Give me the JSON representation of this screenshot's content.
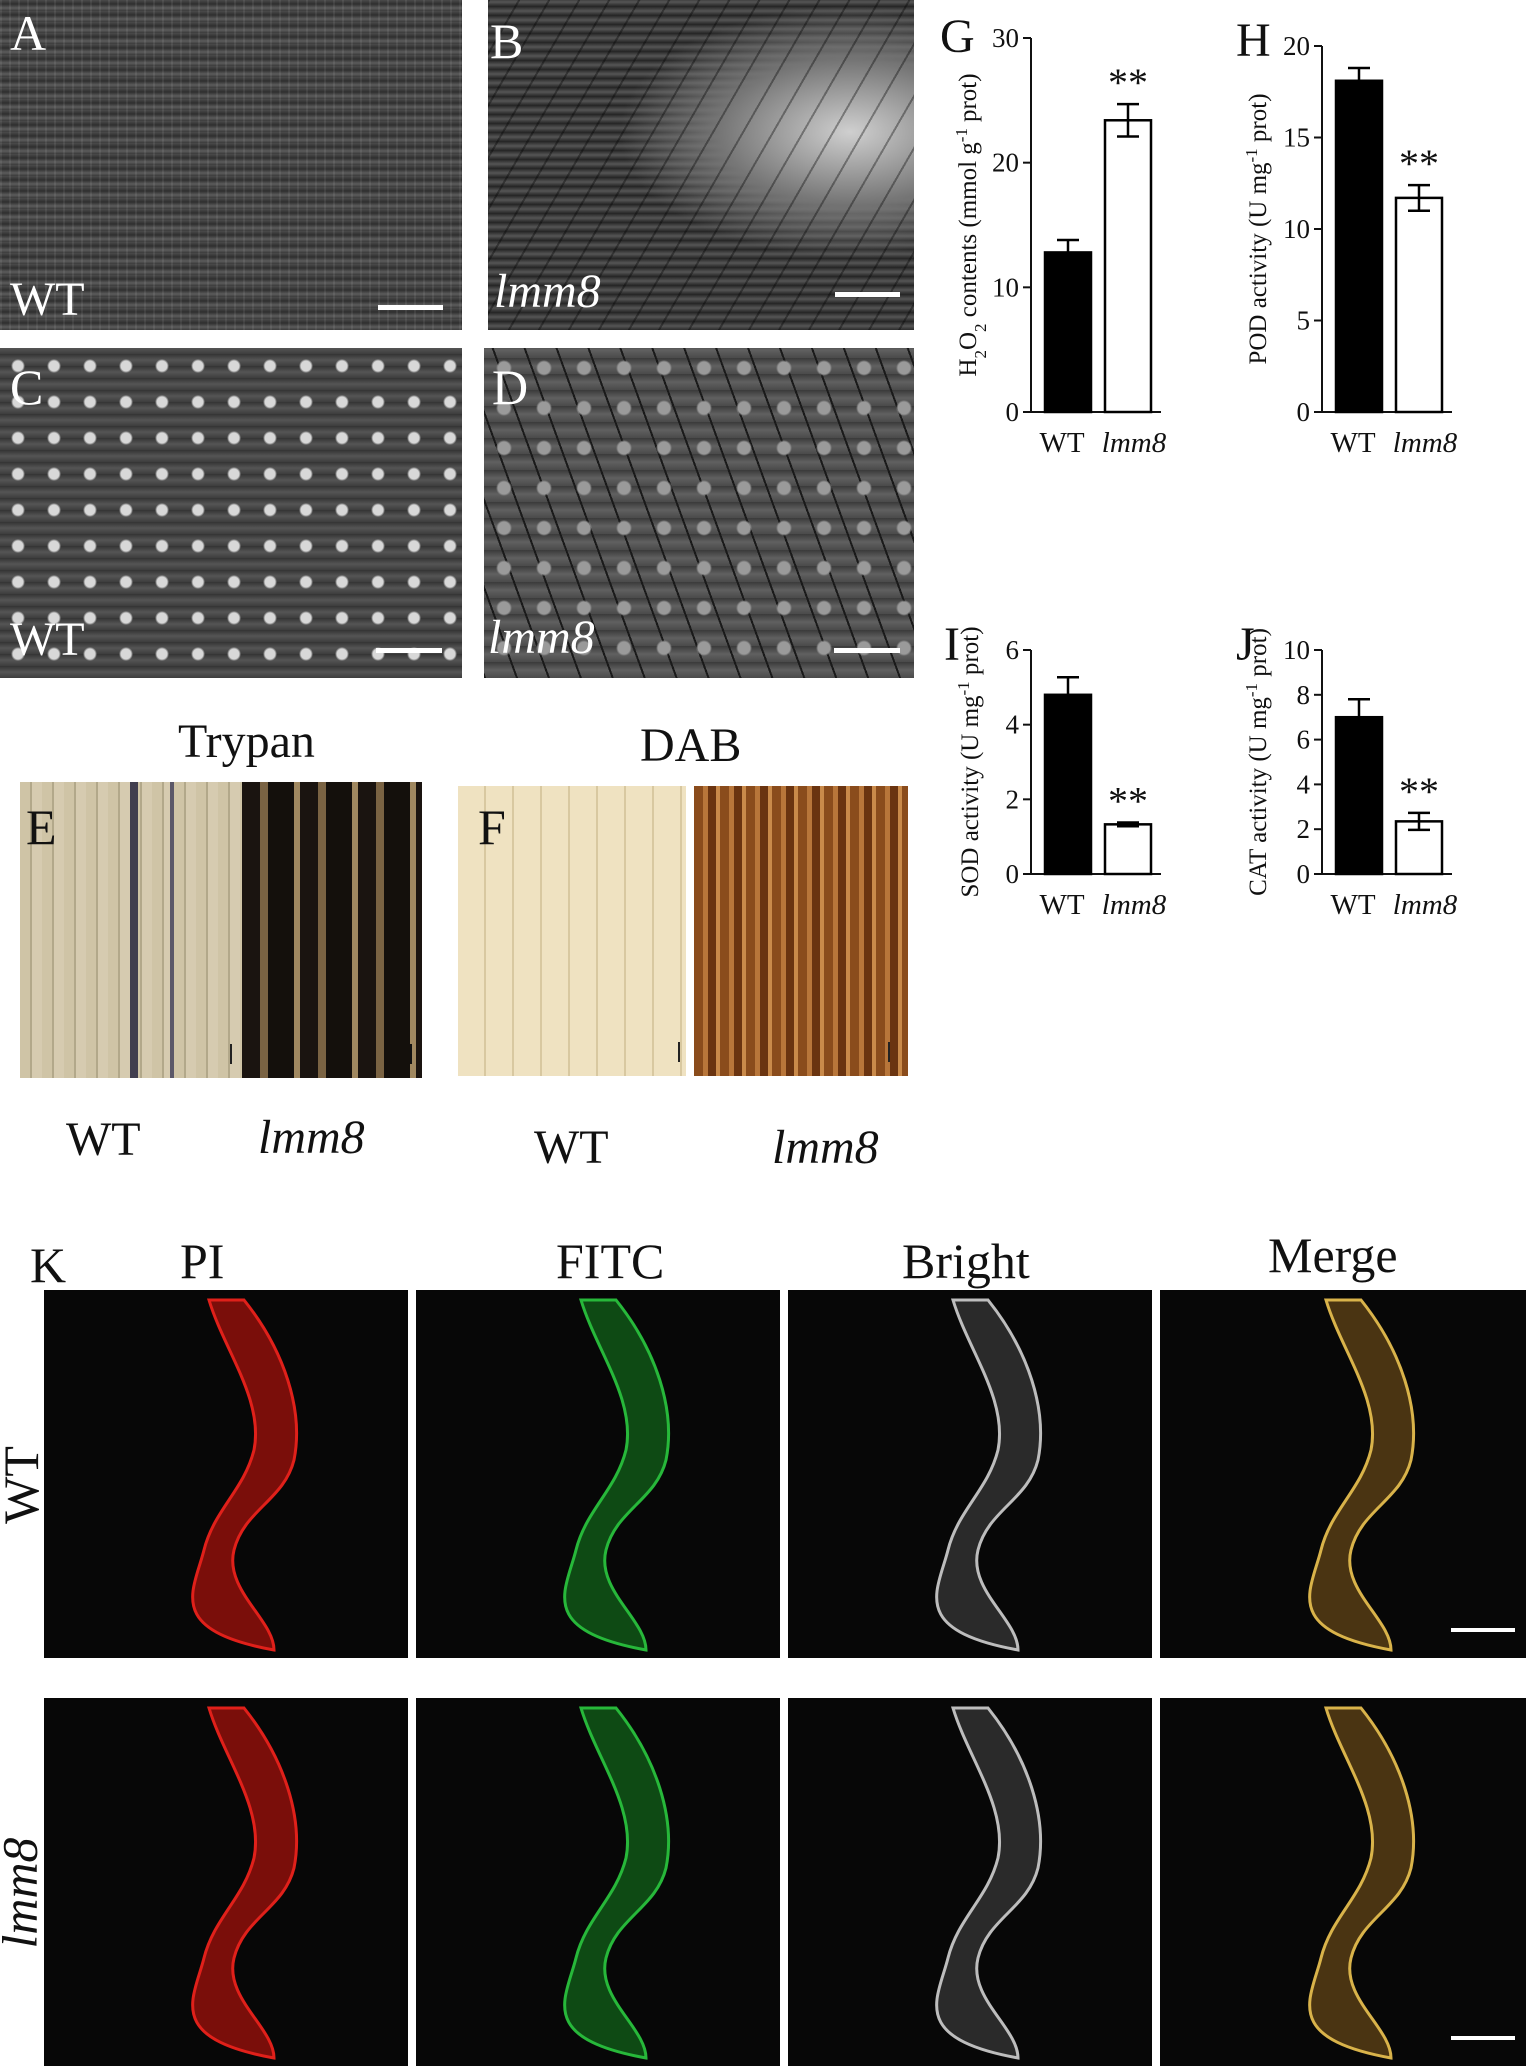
{
  "sem": {
    "A": {
      "letter": "A",
      "genotype": "WT"
    },
    "B": {
      "letter": "B",
      "genotype": "lmm8"
    },
    "C": {
      "letter": "C",
      "genotype": "WT"
    },
    "D": {
      "letter": "D",
      "genotype": "lmm8"
    }
  },
  "stain": {
    "trypan_title": "Trypan",
    "dab_title": "DAB",
    "E_letter": "E",
    "F_letter": "F",
    "E_wt": "WT",
    "E_mut": "lmm8",
    "F_wt": "WT",
    "F_mut": "lmm8"
  },
  "tunel": {
    "letter": "K",
    "columns": [
      "PI",
      "FITC",
      "Bright",
      "Merge"
    ],
    "rows": [
      "WT",
      "lmm8"
    ]
  },
  "chart_data": [
    {
      "panel": "G",
      "type": "bar",
      "categories": [
        "WT",
        "lmm8"
      ],
      "values": [
        12.8,
        23.4
      ],
      "errors": [
        1.0,
        1.3
      ],
      "significance": [
        "",
        "**"
      ],
      "ylabel_main": "H",
      "ylabel_sub": "2",
      "ylabel_mid": "O",
      "ylabel_sub2": "2",
      "ylabel_rest": " contents (mmol g",
      "ylabel_sup": "-1",
      "ylabel_end": "prot)",
      "ylim": [
        0,
        30
      ],
      "yticks": [
        "0",
        "10",
        "20",
        "30"
      ]
    },
    {
      "panel": "H",
      "type": "bar",
      "categories": [
        "WT",
        "lmm8"
      ],
      "values": [
        18.1,
        11.7
      ],
      "errors": [
        0.7,
        0.7
      ],
      "significance": [
        "",
        "**"
      ],
      "ylabel_pre": "POD activity (U mg",
      "ylabel_sup": "-1",
      "ylabel_end": " prot)",
      "ylim": [
        0,
        20
      ],
      "yticks": [
        "0",
        "5",
        "10",
        "15",
        "20"
      ]
    },
    {
      "panel": "I",
      "type": "bar",
      "categories": [
        "WT",
        "lmm8"
      ],
      "values": [
        4.8,
        1.33
      ],
      "errors": [
        0.47,
        0.05
      ],
      "significance": [
        "",
        "**"
      ],
      "ylabel_pre": "SOD activity (U mg",
      "ylabel_sup": "-1",
      "ylabel_end": " prot)",
      "ylim": [
        0,
        6
      ],
      "yticks": [
        "0",
        "2",
        "4",
        "6"
      ]
    },
    {
      "panel": "J",
      "type": "bar",
      "categories": [
        "WT",
        "lmm8"
      ],
      "values": [
        7.0,
        2.35
      ],
      "errors": [
        0.8,
        0.38
      ],
      "significance": [
        "",
        "**"
      ],
      "ylabel_pre": "CAT activity (U mg",
      "ylabel_sup": "-1",
      "ylabel_end": " prot)",
      "ylim": [
        0,
        10
      ],
      "yticks": [
        "0",
        "2",
        "4",
        "6",
        "8",
        "10"
      ]
    }
  ],
  "colors": {
    "wt_bar": "#000000",
    "mut_bar": "#ffffff",
    "axis": "#111111"
  }
}
